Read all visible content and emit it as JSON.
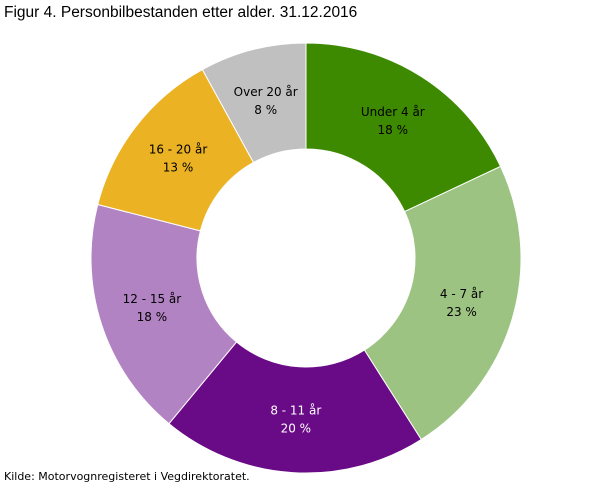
{
  "chart_data": {
    "type": "pie",
    "variant": "donut",
    "title": "Figur 4. Personbilbestanden etter alder. 31.12.2016",
    "source": "Kilde: Motorvognregisteret i Vegdirektoratet.",
    "unit": "%",
    "slices": [
      {
        "label": "Under 4 år",
        "value": 18,
        "value_label": "18 %",
        "color": "#3d8a00",
        "text_color": "#000000"
      },
      {
        "label": "4 - 7 år",
        "value": 23,
        "value_label": "23 %",
        "color": "#9dc383",
        "text_color": "#000000"
      },
      {
        "label": "8 - 11 år",
        "value": 20,
        "value_label": "20 %",
        "color": "#690a86",
        "text_color": "#ffffff"
      },
      {
        "label": "12 - 15 år",
        "value": 18,
        "value_label": "18 %",
        "color": "#b283c3",
        "text_color": "#000000"
      },
      {
        "label": "16 - 20 år",
        "value": 13,
        "value_label": "13 %",
        "color": "#ebb223",
        "text_color": "#000000"
      },
      {
        "label": "Over 20 år",
        "value": 8,
        "value_label": "8 %",
        "color": "#c0c0c0",
        "text_color": "#000000"
      }
    ]
  }
}
